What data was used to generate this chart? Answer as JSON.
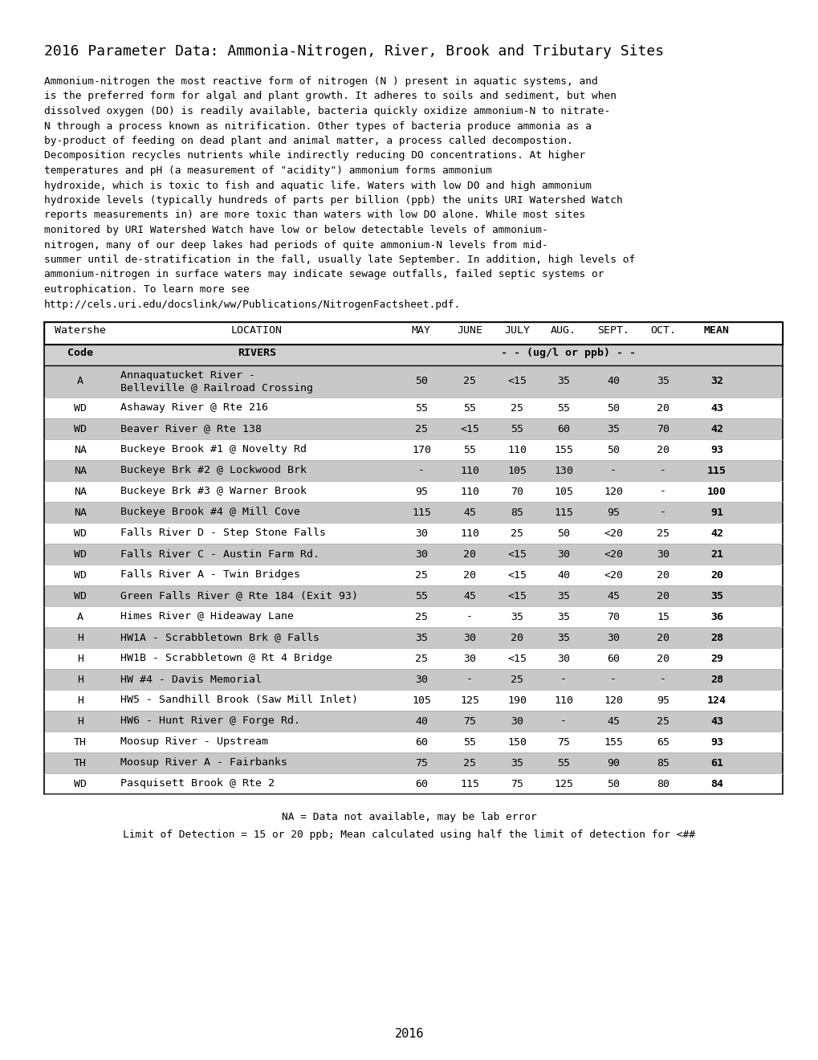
{
  "title": "2016 Parameter Data: Ammonia-Nitrogen, River, Brook and Tributary Sites",
  "para_lines": [
    "Ammonium-nitrogen the most reactive form of nitrogen (N ) present in aquatic systems, and",
    "is the preferred form for algal and plant growth. It adheres to soils and sediment, but when",
    "dissolved oxygen (DO) is readily available, bacteria quickly oxidize ammonium-N to nitrate-",
    "N through a process known as nitrification. Other types of bacteria produce ammonia as a",
    "by-product of feeding on dead plant and animal matter, a process called decompostion.",
    "Decomposition recycles nutrients while indirectly reducing DO concentrations. At higher",
    "temperatures and pH (a measurement of \"acidity\") ammonium forms ammonium",
    "hydroxide, which is toxic to fish and aquatic life. Waters with low DO and high ammonium",
    "hydroxide levels (typically hundreds of parts per billion (ppb) the units URI Watershed Watch",
    "reports measurements in) are more toxic than waters with low DO alone. While most sites",
    "monitored by URI Watershed Watch have low or below detectable levels of ammonium-",
    "nitrogen, many of our deep lakes had periods of quite ammonium-N levels from mid-",
    "summer until de-stratification in the fall, usually late September. In addition, high levels of",
    "ammonium-nitrogen in surface waters may indicate sewage outfalls, failed septic systems or",
    "eutrophication. To learn more see",
    "http://cels.uri.edu/docslink/ww/Publications/NitrogenFactsheet.pdf."
  ],
  "subheader": "- - (ug/l or ppb) - -",
  "rows": [
    {
      "code": "A",
      "location": "Annaquatucket River -\nBelleville @ Railroad Crossing",
      "may": "50",
      "june": "25",
      "july": "<15",
      "aug": "35",
      "sept": "40",
      "oct": "35",
      "mean": "32",
      "shaded": true
    },
    {
      "code": "WD",
      "location": "Ashaway River @ Rte 216",
      "may": "55",
      "june": "55",
      "july": "25",
      "aug": "55",
      "sept": "50",
      "oct": "20",
      "mean": "43",
      "shaded": false
    },
    {
      "code": "WD",
      "location": "Beaver River @ Rte 138",
      "may": "25",
      "june": "<15",
      "july": "55",
      "aug": "60",
      "sept": "35",
      "oct": "70",
      "mean": "42",
      "shaded": true
    },
    {
      "code": "NA",
      "location": "Buckeye Brook #1 @ Novelty Rd",
      "may": "170",
      "june": "55",
      "july": "110",
      "aug": "155",
      "sept": "50",
      "oct": "20",
      "mean": "93",
      "shaded": false
    },
    {
      "code": "NA",
      "location": "Buckeye Brk #2 @ Lockwood Brk",
      "may": "-",
      "june": "110",
      "july": "105",
      "aug": "130",
      "sept": "-",
      "oct": "-",
      "mean": "115",
      "shaded": true
    },
    {
      "code": "NA",
      "location": "Buckeye Brk #3 @ Warner Brook",
      "may": "95",
      "june": "110",
      "july": "70",
      "aug": "105",
      "sept": "120",
      "oct": "-",
      "mean": "100",
      "shaded": false
    },
    {
      "code": "NA",
      "location": "Buckeye Brook #4 @ Mill Cove",
      "may": "115",
      "june": "45",
      "july": "85",
      "aug": "115",
      "sept": "95",
      "oct": "-",
      "mean": "91",
      "shaded": true
    },
    {
      "code": "WD",
      "location": "Falls River D - Step Stone Falls",
      "may": "30",
      "june": "110",
      "july": "25",
      "aug": "50",
      "sept": "<20",
      "oct": "25",
      "mean": "42",
      "shaded": false
    },
    {
      "code": "WD",
      "location": "Falls River C - Austin Farm Rd.",
      "may": "30",
      "june": "20",
      "july": "<15",
      "aug": "30",
      "sept": "<20",
      "oct": "30",
      "mean": "21",
      "shaded": true
    },
    {
      "code": "WD",
      "location": "Falls River A - Twin Bridges",
      "may": "25",
      "june": "20",
      "july": "<15",
      "aug": "40",
      "sept": "<20",
      "oct": "20",
      "mean": "20",
      "shaded": false
    },
    {
      "code": "WD",
      "location": "Green Falls River @ Rte 184 (Exit 93)",
      "may": "55",
      "june": "45",
      "july": "<15",
      "aug": "35",
      "sept": "45",
      "oct": "20",
      "mean": "35",
      "shaded": true
    },
    {
      "code": "A",
      "location": "Himes River @ Hideaway Lane",
      "may": "25",
      "june": "-",
      "july": "35",
      "aug": "35",
      "sept": "70",
      "oct": "15",
      "mean": "36",
      "shaded": false
    },
    {
      "code": "H",
      "location": "HW1A - Scrabbletown Brk @ Falls",
      "may": "35",
      "june": "30",
      "july": "20",
      "aug": "35",
      "sept": "30",
      "oct": "20",
      "mean": "28",
      "shaded": true
    },
    {
      "code": "H",
      "location": "HW1B - Scrabbletown @ Rt 4 Bridge",
      "may": "25",
      "june": "30",
      "july": "<15",
      "aug": "30",
      "sept": "60",
      "oct": "20",
      "mean": "29",
      "shaded": false
    },
    {
      "code": "H",
      "location": "HW #4 - Davis Memorial",
      "may": "30",
      "june": "-",
      "july": "25",
      "aug": "-",
      "sept": "-",
      "oct": "-",
      "mean": "28",
      "shaded": true
    },
    {
      "code": "H",
      "location": "HW5 - Sandhill Brook (Saw Mill Inlet)",
      "may": "105",
      "june": "125",
      "july": "190",
      "aug": "110",
      "sept": "120",
      "oct": "95",
      "mean": "124",
      "shaded": false
    },
    {
      "code": "H",
      "location": "HW6 - Hunt River @ Forge Rd.",
      "may": "40",
      "june": "75",
      "july": "30",
      "aug": "-",
      "sept": "45",
      "oct": "25",
      "mean": "43",
      "shaded": true
    },
    {
      "code": "TH",
      "location": "Moosup River - Upstream",
      "may": "60",
      "june": "55",
      "july": "150",
      "aug": "75",
      "sept": "155",
      "oct": "65",
      "mean": "93",
      "shaded": false
    },
    {
      "code": "TH",
      "location": "Moosup River A - Fairbanks",
      "may": "75",
      "june": "25",
      "july": "35",
      "aug": "55",
      "sept": "90",
      "oct": "85",
      "mean": "61",
      "shaded": true
    },
    {
      "code": "WD",
      "location": "Pasquisett Brook @ Rte 2",
      "may": "60",
      "june": "115",
      "july": "75",
      "aug": "125",
      "sept": "50",
      "oct": "80",
      "mean": "84",
      "shaded": false
    }
  ],
  "footnote1": "NA = Data not available, may be lab error",
  "footnote2": "Limit of Detection = 15 or 20 ppb; Mean calculated using half the limit of detection for <##",
  "footer": "2016",
  "shaded_color": "#c8c8c8",
  "white_color": "#ffffff"
}
